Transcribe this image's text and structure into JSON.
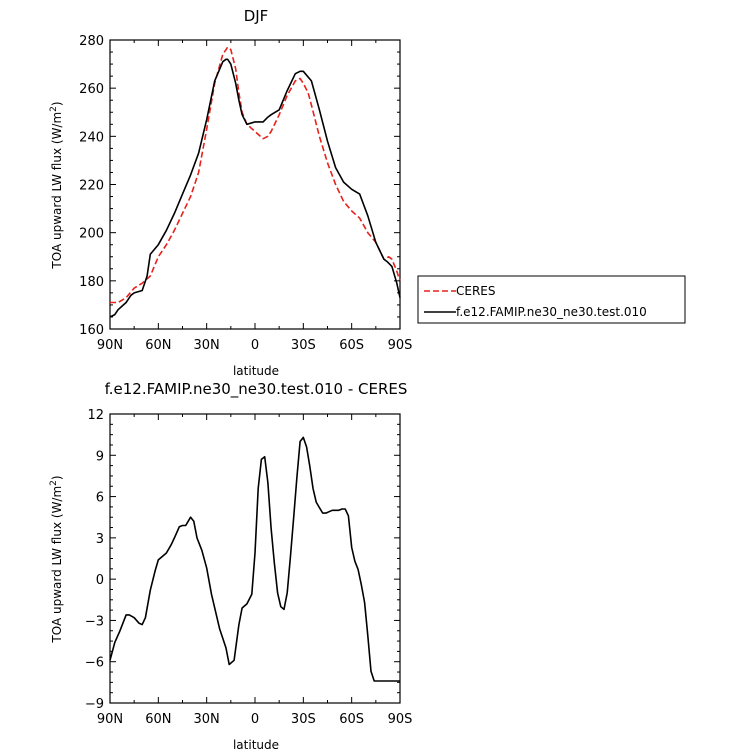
{
  "chart_data": [
    {
      "type": "line",
      "title": "DJF",
      "xlabel": "latitude",
      "ylabel": "TOA upward LW flux (W/m²)",
      "ylabel_parts": {
        "pre": "TOA upward LW flux (W/m",
        "sup": "2",
        "post": ")"
      },
      "xlim": [
        -90,
        90
      ],
      "ylim": [
        160,
        280
      ],
      "xtick_values": [
        -90,
        -60,
        -30,
        0,
        30,
        60,
        90
      ],
      "xtick_labels": [
        "90N",
        "60N",
        "30N",
        "0",
        "30S",
        "60S",
        "90S"
      ],
      "ytick_values": [
        160,
        180,
        200,
        220,
        240,
        260,
        280
      ],
      "ytick_labels": [
        "160",
        "180",
        "200",
        "220",
        "240",
        "260",
        "280"
      ],
      "legend_position": "right, outside the plot",
      "grid": false,
      "series": [
        {
          "name": "CERES",
          "color": "#e8211b",
          "dash": "dashed",
          "x": [
            -90,
            -85,
            -80,
            -75,
            -70,
            -65,
            -60,
            -55,
            -50,
            -45,
            -40,
            -35,
            -30,
            -25,
            -20,
            -17,
            -15,
            -12,
            -10,
            -8,
            -5,
            0,
            5,
            8,
            10,
            15,
            20,
            25,
            28,
            30,
            33,
            35,
            40,
            45,
            50,
            55,
            60,
            65,
            70,
            75,
            80,
            83,
            85,
            88,
            90
          ],
          "y": [
            171,
            171,
            173,
            177,
            179,
            182,
            190,
            195,
            201,
            208,
            215,
            225,
            243,
            262,
            274,
            277,
            276,
            268,
            258,
            250,
            245,
            242,
            239,
            240,
            242,
            249,
            257,
            263,
            264,
            262,
            258,
            253,
            240,
            229,
            220,
            213,
            209,
            206,
            200,
            196,
            189,
            190,
            189,
            184,
            180
          ]
        },
        {
          "name": "f.e12.FAMIP.ne30_ne30.test.010",
          "color": "#000000",
          "dash": "solid",
          "x": [
            -90,
            -87,
            -85,
            -80,
            -77,
            -75,
            -70,
            -67,
            -65,
            -60,
            -55,
            -50,
            -45,
            -40,
            -35,
            -30,
            -25,
            -20,
            -18,
            -17,
            -15,
            -12,
            -10,
            -8,
            -5,
            0,
            3,
            5,
            8,
            10,
            15,
            20,
            25,
            28,
            30,
            35,
            40,
            45,
            50,
            55,
            60,
            65,
            70,
            75,
            80,
            82,
            85,
            88,
            90
          ],
          "y": [
            165,
            166,
            168,
            171,
            174,
            175,
            176,
            182,
            191,
            195,
            201,
            208,
            216,
            224,
            233,
            247,
            263,
            271,
            272,
            272,
            270,
            262,
            255,
            249,
            245,
            246,
            246,
            246,
            248,
            249,
            251,
            259,
            266,
            267,
            267,
            263,
            251,
            238,
            227,
            221,
            218,
            216,
            207,
            196,
            189,
            188,
            186,
            179,
            173
          ]
        }
      ]
    },
    {
      "type": "line",
      "title": "f.e12.FAMIP.ne30_ne30.test.010 - CERES",
      "xlabel": "latitude",
      "ylabel": "TOA upward LW flux (W/m²)",
      "ylabel_parts": {
        "pre": "TOA upward LW flux (W/m",
        "sup": "2",
        "post": ")"
      },
      "xlim": [
        -90,
        90
      ],
      "ylim": [
        -9,
        12
      ],
      "xtick_values": [
        -90,
        -60,
        -30,
        0,
        30,
        60,
        90
      ],
      "xtick_labels": [
        "90N",
        "60N",
        "30N",
        "0",
        "30S",
        "60S",
        "90S"
      ],
      "ytick_values": [
        -9,
        -6,
        -3,
        0,
        3,
        6,
        9,
        12
      ],
      "ytick_labels": [
        "−9",
        "−6",
        "−3",
        "0",
        "3",
        "6",
        "9",
        "12"
      ],
      "grid": false,
      "series": [
        {
          "name": "",
          "color": "#000000",
          "dash": "solid",
          "x": [
            -90,
            -87,
            -84,
            -80,
            -78,
            -75,
            -72,
            -70,
            -68,
            -65,
            -62,
            -60,
            -55,
            -52,
            -50,
            -47,
            -45,
            -43,
            -40,
            -38,
            -36,
            -33,
            -30,
            -27,
            -22,
            -18,
            -16,
            -13,
            -10,
            -8,
            -5,
            -2,
            0,
            2,
            4,
            6,
            8,
            10,
            12,
            14,
            16,
            18,
            20,
            22,
            24,
            26,
            28,
            30,
            32,
            34,
            36,
            38,
            40,
            42,
            44,
            46,
            48,
            50,
            52,
            54,
            56,
            58,
            60,
            62,
            64,
            66,
            68,
            70,
            72,
            74,
            76,
            78,
            80,
            82,
            84,
            86,
            88,
            90
          ],
          "y": [
            -5.9,
            -4.6,
            -3.8,
            -2.6,
            -2.6,
            -2.8,
            -3.2,
            -3.3,
            -2.8,
            -0.8,
            0.6,
            1.4,
            1.9,
            2.5,
            3.0,
            3.8,
            3.9,
            3.9,
            4.5,
            4.2,
            3.0,
            2.1,
            0.8,
            -1.1,
            -3.6,
            -5.0,
            -6.2,
            -5.9,
            -3.3,
            -2.1,
            -1.8,
            -1.1,
            1.9,
            6.6,
            8.7,
            8.9,
            7.0,
            3.7,
            1.2,
            -1.0,
            -2.0,
            -2.2,
            -1.0,
            1.6,
            4.5,
            7.4,
            10.0,
            10.3,
            9.6,
            8.2,
            6.6,
            5.6,
            5.2,
            4.8,
            4.8,
            4.9,
            5.0,
            5.0,
            5.0,
            5.1,
            5.1,
            4.6,
            2.3,
            1.3,
            0.7,
            -0.4,
            -1.7,
            -4.1,
            -6.7,
            -7.4,
            -7.4,
            -7.4,
            -7.4,
            -7.4,
            -7.4,
            -7.4,
            -7.4,
            -7.4
          ]
        }
      ]
    }
  ]
}
